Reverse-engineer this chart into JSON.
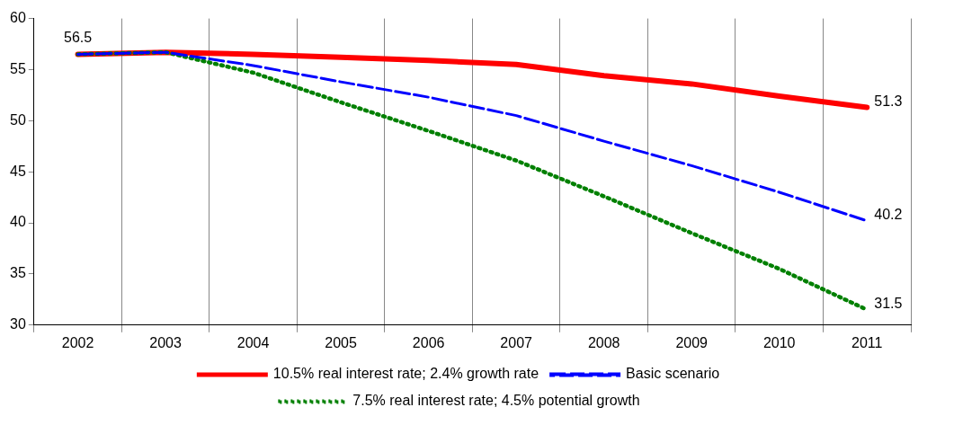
{
  "chart_data": {
    "type": "line",
    "categories": [
      "2002",
      "2003",
      "2004",
      "2005",
      "2006",
      "2007",
      "2008",
      "2009",
      "2010",
      "2011"
    ],
    "series": [
      {
        "name": "10.5% real interest rate; 2.4% growth rate",
        "color": "#ff0000",
        "line_style": "solid",
        "values": [
          56.5,
          56.7,
          56.5,
          56.2,
          55.9,
          55.5,
          54.4,
          53.6,
          52.4,
          51.3
        ]
      },
      {
        "name": "Basic scenario",
        "color": "#0000ff",
        "line_style": "dashed",
        "values": [
          56.5,
          56.7,
          55.4,
          53.8,
          52.3,
          50.5,
          48.0,
          45.6,
          43.0,
          40.2
        ]
      },
      {
        "name": "7.5% real interest rate; 4.5% potential growth",
        "color": "#008000",
        "line_style": "dotted",
        "values": [
          56.5,
          56.7,
          54.7,
          51.8,
          49.0,
          46.1,
          42.6,
          39.0,
          35.5,
          31.5
        ]
      }
    ],
    "ylim": [
      30,
      60
    ],
    "yticks": [
      30,
      35,
      40,
      45,
      50,
      55,
      60
    ],
    "grid": "x",
    "legend": "bottom",
    "marker": "none",
    "annotations": [
      {
        "text": "56.5",
        "x": "2002",
        "y": 56.5
      },
      {
        "text": "51.3",
        "x": "2011",
        "y": 51.3
      },
      {
        "text": "40.2",
        "x": "2011",
        "y": 40.2
      },
      {
        "text": "31.5",
        "x": "2011",
        "y": 31.5
      }
    ]
  }
}
